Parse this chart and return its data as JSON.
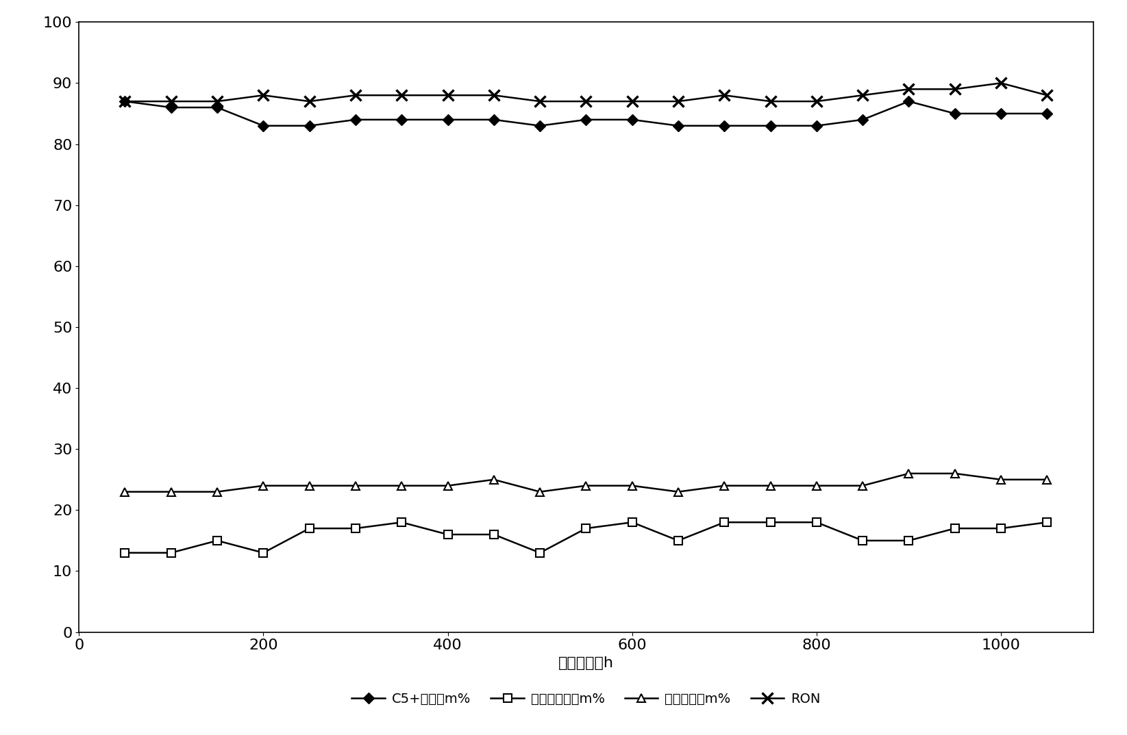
{
  "x": [
    50,
    100,
    150,
    200,
    250,
    300,
    350,
    400,
    450,
    500,
    550,
    600,
    650,
    700,
    750,
    800,
    850,
    900,
    950,
    1000,
    1050
  ],
  "c5_yield": [
    87,
    86,
    86,
    83,
    83,
    84,
    84,
    84,
    84,
    83,
    84,
    84,
    83,
    83,
    83,
    83,
    84,
    87,
    85,
    85,
    85
  ],
  "liq_gas_yield": [
    13,
    13,
    15,
    13,
    17,
    17,
    18,
    16,
    16,
    13,
    17,
    18,
    15,
    18,
    18,
    18,
    15,
    15,
    17,
    17,
    18
  ],
  "aromatic_content": [
    23,
    23,
    23,
    24,
    24,
    24,
    24,
    24,
    25,
    23,
    24,
    24,
    23,
    24,
    24,
    24,
    24,
    26,
    26,
    25,
    25
  ],
  "ron": [
    87,
    87,
    87,
    88,
    87,
    88,
    88,
    88,
    88,
    87,
    87,
    87,
    87,
    88,
    87,
    87,
    88,
    89,
    89,
    90,
    88
  ],
  "xlabel": "反应时间，h",
  "xlim": [
    0,
    1100
  ],
  "ylim": [
    0,
    100
  ],
  "yticks": [
    0,
    10,
    20,
    30,
    40,
    50,
    60,
    70,
    80,
    90,
    100
  ],
  "xticks": [
    0,
    200,
    400,
    600,
    800,
    1000
  ],
  "legend_labels": [
    "C5+收率，m%",
    "液化气收率，m%",
    "芳烃含量，m%",
    "RON"
  ],
  "line_color": "#000000",
  "background_color": "#ffffff",
  "axis_fontsize": 16,
  "legend_fontsize": 14,
  "tick_fontsize": 16
}
